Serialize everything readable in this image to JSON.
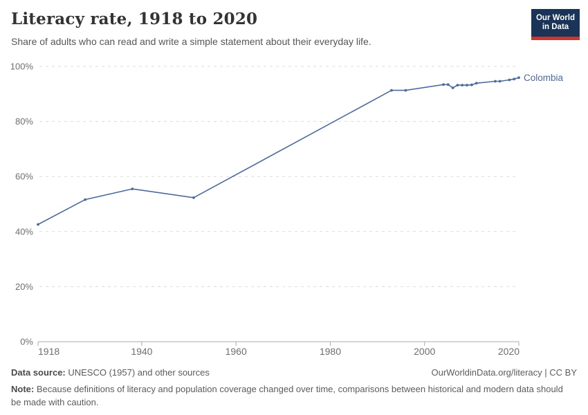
{
  "header": {
    "title": "Literacy rate, 1918 to 2020",
    "subtitle": "Share of adults who can read and write a simple statement about their everyday life.",
    "logo_line1": "Our World",
    "logo_line2": "in Data"
  },
  "chart_data": {
    "type": "line",
    "title": "Literacy rate, 1918 to 2020",
    "xlabel": "",
    "ylabel": "",
    "xlim": [
      1918,
      2020
    ],
    "ylim": [
      0,
      100
    ],
    "grid": "horizontal-dashed",
    "legend_position": "end-of-line",
    "x_ticks": [
      1918,
      1940,
      1960,
      1980,
      2000,
      2020
    ],
    "y_tick_values": [
      0,
      20,
      40,
      60,
      80,
      100
    ],
    "y_tick_labels": [
      "0%",
      "20%",
      "40%",
      "60%",
      "80%",
      "100%"
    ],
    "series": [
      {
        "name": "Colombia",
        "color": "#4C6A9C",
        "points": [
          [
            1918,
            42.6
          ],
          [
            1928,
            51.6
          ],
          [
            1938,
            55.5
          ],
          [
            1951,
            52.3
          ],
          [
            1993,
            91.3
          ],
          [
            1996,
            91.3
          ],
          [
            2004,
            93.4
          ],
          [
            2005,
            93.4
          ],
          [
            2006,
            92.2
          ],
          [
            2007,
            93.2
          ],
          [
            2008,
            93.2
          ],
          [
            2009,
            93.2
          ],
          [
            2010,
            93.3
          ],
          [
            2011,
            93.9
          ],
          [
            2015,
            94.6
          ],
          [
            2016,
            94.6
          ],
          [
            2018,
            95.1
          ],
          [
            2019,
            95.4
          ],
          [
            2020,
            95.9
          ]
        ]
      }
    ]
  },
  "footer": {
    "source_label": "Data source:",
    "source_rest": " UNESCO (1957) and other sources",
    "credit": "OurWorldinData.org/literacy | CC BY",
    "note_label": "Note:",
    "note_rest": " Because definitions of literacy and population coverage changed over time, comparisons between historical and modern data should be made with caution."
  },
  "colors": {
    "accent_line": "#4C6A9C",
    "logo_navy": "#1a3457",
    "logo_red": "#d0352c",
    "grid": "#dcdcdc",
    "axis": "#a8a8a8",
    "tick_text": "#6e6e6e"
  }
}
